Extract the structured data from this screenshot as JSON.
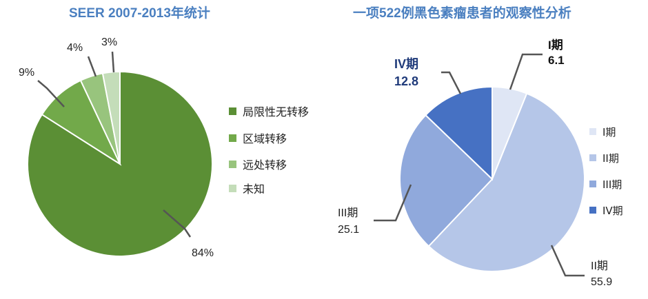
{
  "chart_data": [
    {
      "type": "pie",
      "title": "SEER 2007-2013年统计",
      "categories": [
        "局限性无转移",
        "区域转移",
        "远处转移",
        "未知"
      ],
      "values": [
        84,
        9,
        4,
        3
      ],
      "labels": [
        "84%",
        "9%",
        "4%",
        "3%"
      ],
      "colors": [
        "#5b8f35",
        "#72a94a",
        "#98c47d",
        "#c4ddb9"
      ],
      "legend": "right"
    },
    {
      "type": "pie",
      "title": "一项522例黑色素瘤患者的观察性分析",
      "categories": [
        "I期",
        "II期",
        "III期",
        "IV期"
      ],
      "values": [
        6.1,
        55.9,
        25.1,
        12.8
      ],
      "labels": [
        {
          "stage": "I期",
          "value": "6.1"
        },
        {
          "stage": "II期",
          "value": "55.9"
        },
        {
          "stage": "III期",
          "value": "25.1"
        },
        {
          "stage": "IV期",
          "value": "12.8"
        }
      ],
      "colors": [
        "#dfe6f5",
        "#b5c6e8",
        "#90a9dc",
        "#4671c3"
      ],
      "legend": "right"
    }
  ]
}
